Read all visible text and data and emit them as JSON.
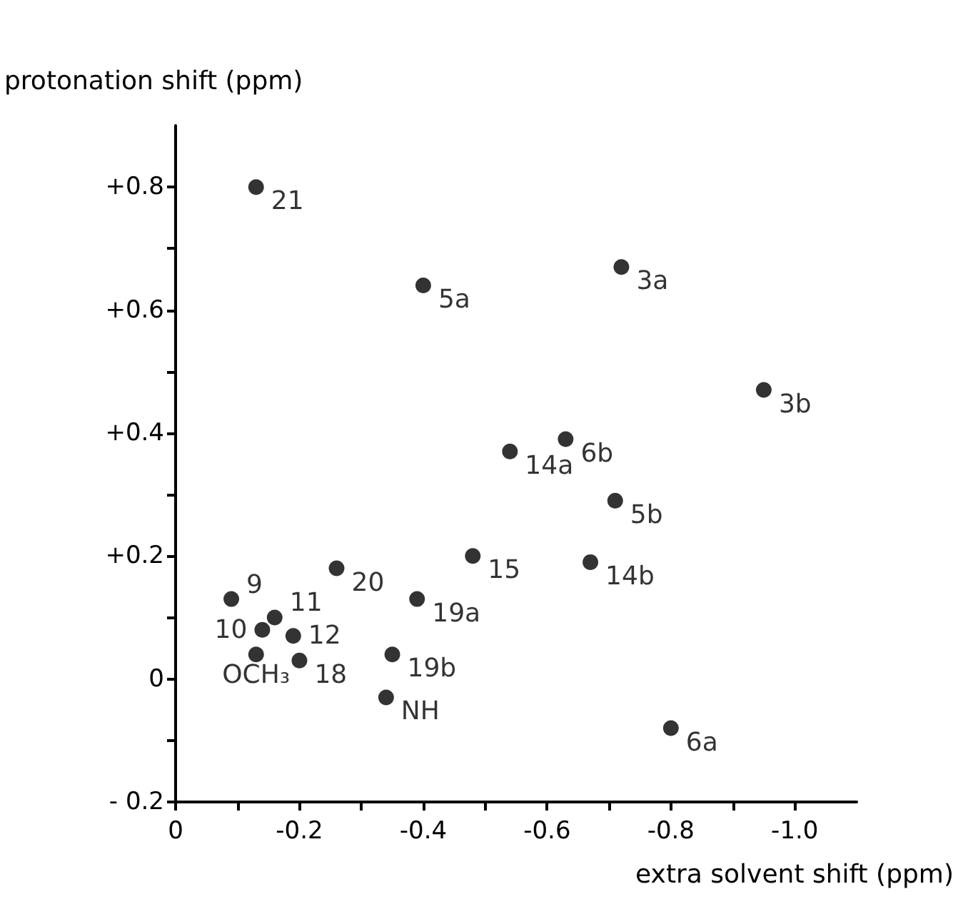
{
  "chart_data": {
    "type": "scatter",
    "xlabel": "extra solvent shift (ppm)",
    "ylabel": "protonation shift (ppm)",
    "xlim": [
      0,
      -1.1
    ],
    "ylim": [
      -0.2,
      0.9
    ],
    "xticks": [
      0,
      {
        "value": -0.1,
        "label": null
      },
      -0.2,
      {
        "value": -0.3,
        "label": null
      },
      -0.4,
      {
        "value": -0.5,
        "label": null
      },
      -0.6,
      {
        "value": -0.7,
        "label": null
      },
      -0.8,
      {
        "value": -0.9,
        "label": null
      },
      {
        "value": -1,
        "label": "-1.0"
      }
    ],
    "yticks": [
      {
        "value": -0.2,
        "label": "- 0.2"
      },
      {
        "value": -0.1,
        "label": null
      },
      0,
      {
        "value": 0.1,
        "label": null
      },
      {
        "value": 0.2,
        "label": "+0.2"
      },
      {
        "value": 0.3,
        "label": null
      },
      {
        "value": 0.4,
        "label": "+0.4"
      },
      {
        "value": 0.5,
        "label": null
      },
      {
        "value": 0.6,
        "label": "+0.6"
      },
      {
        "value": 0.7,
        "label": null
      },
      {
        "value": 0.8,
        "label": "+0.8"
      }
    ],
    "grid": false,
    "legend": false,
    "marker": "circle",
    "series": [
      {
        "name": "21",
        "color": "#000000",
        "x": [
          -0.13
        ],
        "values": [
          0.8
        ]
      },
      {
        "name": "5a",
        "color": "#000000",
        "x": [
          -0.4
        ],
        "values": [
          0.64
        ]
      },
      {
        "name": "3a",
        "color": "#000000",
        "x": [
          -0.72
        ],
        "values": [
          0.67
        ]
      },
      {
        "name": "3b",
        "color": "#000000",
        "x": [
          -0.95
        ],
        "values": [
          0.47
        ]
      },
      {
        "name": "14a",
        "color": "#000000",
        "x": [
          -0.54
        ],
        "values": [
          0.37
        ]
      },
      {
        "name": "6b",
        "color": "#000000",
        "x": [
          -0.63
        ],
        "values": [
          0.39
        ]
      },
      {
        "name": "5b",
        "color": "#000000",
        "x": [
          -0.71
        ],
        "values": [
          0.29
        ]
      },
      {
        "name": "14b",
        "color": "#000000",
        "x": [
          -0.67
        ],
        "values": [
          0.19
        ]
      },
      {
        "name": "20",
        "color": "#000000",
        "x": [
          -0.26
        ],
        "values": [
          0.18
        ]
      },
      {
        "name": "15",
        "color": "#000000",
        "x": [
          -0.48
        ],
        "values": [
          0.2
        ]
      },
      {
        "name": "9",
        "color": "#000000",
        "x": [
          -0.09
        ],
        "values": [
          0.13
        ]
      },
      {
        "name": "11",
        "color": "#000000",
        "x": [
          -0.16
        ],
        "values": [
          0.1
        ]
      },
      {
        "name": "10",
        "color": "#000000",
        "x": [
          -0.14
        ],
        "values": [
          0.08
        ]
      },
      {
        "name": "12",
        "color": "#000000",
        "x": [
          -0.19
        ],
        "values": [
          0.07
        ]
      },
      {
        "name": "OCH₃",
        "color": "#000000",
        "x": [
          -0.13
        ],
        "values": [
          0.04
        ]
      },
      {
        "name": "18",
        "color": "#000000",
        "x": [
          -0.2
        ],
        "values": [
          0.03
        ]
      },
      {
        "name": "19a",
        "color": "#000000",
        "x": [
          -0.39
        ],
        "values": [
          0.13
        ]
      },
      {
        "name": "19b",
        "color": "#000000",
        "x": [
          -0.35
        ],
        "values": [
          0.04
        ]
      },
      {
        "name": "NH",
        "color": "#000000",
        "x": [
          -0.34
        ],
        "values": [
          -0.03
        ]
      },
      {
        "name": "6a",
        "color": "#000000",
        "x": [
          -0.8
        ],
        "values": [
          -0.08
        ]
      }
    ]
  }
}
